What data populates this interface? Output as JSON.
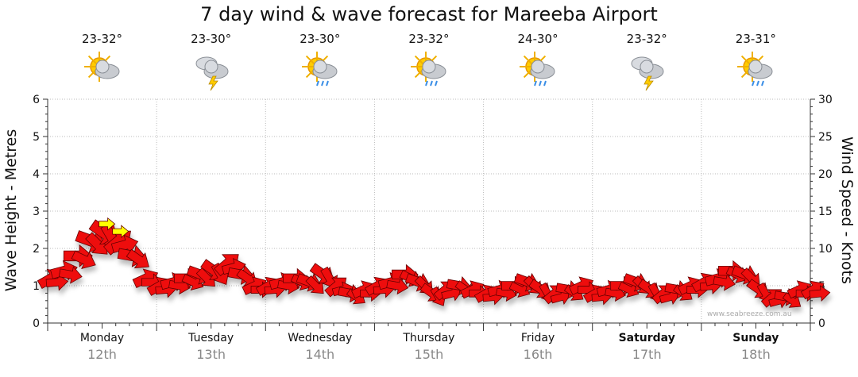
{
  "chart_data": {
    "type": "line",
    "title": "7 day wind & wave forecast for Mareeba Airport",
    "ylabel_left": "Wave Height - Metres",
    "ylabel_right": "Wind Speed - Knots",
    "ylim_left": [
      0,
      6
    ],
    "ylim_right": [
      0,
      30
    ],
    "yticks_left": [
      "0",
      "1",
      "2",
      "3",
      "4",
      "5",
      "6"
    ],
    "yticks_right": [
      "0",
      "5",
      "10",
      "15",
      "20",
      "25",
      "30"
    ],
    "grid": true,
    "days": [
      {
        "name": "Monday",
        "date": "12th",
        "temp": "23-32°",
        "icon": "sun-cloud-icon",
        "bold": false
      },
      {
        "name": "Tuesday",
        "date": "13th",
        "temp": "23-30°",
        "icon": "storm-icon",
        "bold": false
      },
      {
        "name": "Wednesday",
        "date": "14th",
        "temp": "23-30°",
        "icon": "sun-rain-icon",
        "bold": false
      },
      {
        "name": "Thursday",
        "date": "15th",
        "temp": "23-32°",
        "icon": "sun-rain-icon",
        "bold": false
      },
      {
        "name": "Friday",
        "date": "16th",
        "temp": "24-30°",
        "icon": "sun-rain-icon",
        "bold": false
      },
      {
        "name": "Saturday",
        "date": "17th",
        "temp": "23-32°",
        "icon": "storm-icon",
        "bold": true
      },
      {
        "name": "Sunday",
        "date": "18th",
        "temp": "23-31°",
        "icon": "sun-rain-icon",
        "bold": true
      }
    ],
    "wind_series": {
      "unit": "knots",
      "hours_from_monday_start": [
        0,
        3,
        6,
        9,
        12,
        15,
        18,
        21,
        24,
        27,
        30,
        33,
        36,
        39,
        42,
        45,
        48,
        51,
        54,
        57,
        60,
        63,
        66,
        69,
        72,
        75,
        78,
        81,
        84,
        87,
        90,
        93,
        96,
        99,
        102,
        105,
        108,
        111,
        114,
        117,
        120,
        123,
        126,
        129,
        132,
        135,
        138,
        141,
        144,
        147,
        150,
        153,
        156,
        159,
        162,
        165,
        168
      ],
      "speed": [
        6,
        7,
        9,
        11,
        12,
        11,
        9,
        6,
        5,
        5.5,
        6,
        6.5,
        7,
        8,
        6.5,
        5,
        5,
        5.5,
        6,
        5.5,
        6.5,
        5,
        4,
        4.5,
        5,
        5.5,
        6.5,
        5.5,
        4,
        4.5,
        5,
        4.5,
        4,
        4.5,
        5,
        5.5,
        4.5,
        4,
        4.5,
        5,
        4,
        4.5,
        5,
        5.5,
        4.5,
        4,
        4.5,
        5,
        5.5,
        6,
        7,
        6.5,
        4.5,
        3.5,
        3.5,
        4.5,
        4.5
      ],
      "gust_highlight_hours": [
        12,
        15
      ]
    },
    "credit": "www.seabreeze.com.au"
  },
  "colors": {
    "arrow_fill": "#ee1111",
    "arrow_highlight": "#ffff00",
    "grid": "#bbbbbb",
    "axis": "#333333",
    "day_date": "#888888"
  }
}
